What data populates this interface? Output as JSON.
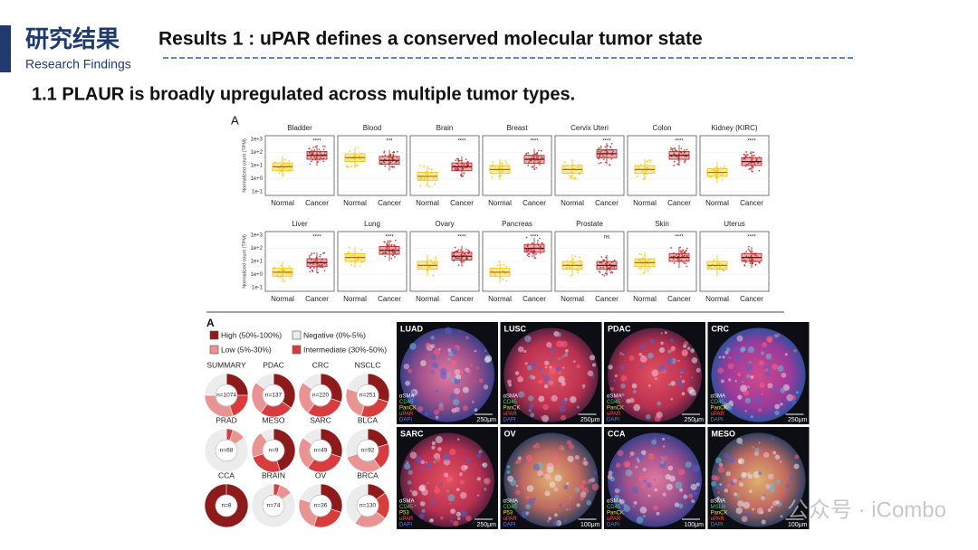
{
  "header": {
    "title_cn": "研究结果",
    "title_en": "Research Findings",
    "heading": "Results 1 : uPAR defines a conserved molecular tumor state"
  },
  "subtitle": "1.1 PLAUR is broadly upregulated across multiple tumor types.",
  "expression_panel": {
    "label": "A",
    "y_axis_label": "Normalized count (TPM)",
    "log_scale": true,
    "ylim": [
      0.1,
      1000
    ],
    "yticks": [
      {
        "value": 1000,
        "label": "1e+3"
      },
      {
        "value": 100,
        "label": "1e+2"
      },
      {
        "value": 10,
        "label": "1e+1"
      },
      {
        "value": 1,
        "label": "1e+0"
      },
      {
        "value": 0.1,
        "label": "1e-1"
      }
    ],
    "groups": [
      "Normal",
      "Cancer"
    ],
    "colors": [
      "#f2c200",
      "#b22222"
    ],
    "tissues": [
      {
        "name": "Bladder",
        "significance": "****",
        "medians": [
          8,
          60
        ]
      },
      {
        "name": "Blood",
        "significance": "***",
        "medians": [
          40,
          25
        ]
      },
      {
        "name": "Brain",
        "significance": "****",
        "medians": [
          1.5,
          8
        ]
      },
      {
        "name": "Breast",
        "significance": "****",
        "medians": [
          5,
          30
        ]
      },
      {
        "name": "Cervix Uteri",
        "significance": "****",
        "medians": [
          5,
          80
        ]
      },
      {
        "name": "Colon",
        "significance": "****",
        "medians": [
          5,
          60
        ]
      },
      {
        "name": "Kidney (KIRC)",
        "significance": "****",
        "medians": [
          3,
          20
        ]
      },
      {
        "name": "Liver",
        "significance": "****",
        "medians": [
          1.5,
          8
        ]
      },
      {
        "name": "Lung",
        "significance": "****",
        "medians": [
          20,
          70
        ]
      },
      {
        "name": "Ovary",
        "significance": "****",
        "medians": [
          5,
          25
        ]
      },
      {
        "name": "Pancreas",
        "significance": "****",
        "medians": [
          1.5,
          100
        ]
      },
      {
        "name": "Prostate",
        "significance": "ns",
        "medians": [
          5,
          5
        ]
      },
      {
        "name": "Skin",
        "significance": "****",
        "medians": [
          8,
          20
        ]
      },
      {
        "name": "Uterus",
        "significance": "****",
        "medians": [
          5,
          20
        ]
      }
    ]
  },
  "proportion_panel": {
    "label": "A",
    "legend": [
      {
        "name": "High (50%-100%)",
        "color": "#8e1b1b"
      },
      {
        "name": "Negative (0%-5%)",
        "color": "#ececec"
      },
      {
        "name": "Low (5%-30%)",
        "color": "#e99393"
      },
      {
        "name": "Intermediate (30%-50%)",
        "color": "#d83c3c"
      }
    ],
    "cohorts": [
      {
        "name": "SUMMARY",
        "n": "n=1074",
        "shares": [
          25,
          25,
          30,
          20
        ]
      },
      {
        "name": "PDAC",
        "n": "n=137",
        "shares": [
          35,
          15,
          25,
          25
        ]
      },
      {
        "name": "CRC",
        "n": "n=220",
        "shares": [
          30,
          15,
          25,
          30
        ]
      },
      {
        "name": "NSCLC",
        "n": "n=251",
        "shares": [
          30,
          20,
          25,
          25
        ]
      },
      {
        "name": "PRAD",
        "n": "n=68",
        "shares": [
          0,
          85,
          10,
          5
        ]
      },
      {
        "name": "MESO",
        "n": "n=9",
        "shares": [
          45,
          10,
          20,
          25
        ]
      },
      {
        "name": "SARC",
        "n": "n=49",
        "shares": [
          30,
          15,
          25,
          30
        ]
      },
      {
        "name": "BLCA",
        "n": "n=92",
        "shares": [
          20,
          30,
          30,
          20
        ]
      },
      {
        "name": "CCA",
        "n": "n=8",
        "shares": [
          100,
          0,
          0,
          0
        ]
      },
      {
        "name": "BRAIN",
        "n": "n=74",
        "shares": [
          0,
          85,
          10,
          5
        ]
      },
      {
        "name": "OV",
        "n": "n=36",
        "shares": [
          30,
          20,
          25,
          25
        ]
      },
      {
        "name": "BRCA",
        "n": "n=130",
        "shares": [
          15,
          40,
          25,
          20
        ]
      }
    ]
  },
  "image_panel": {
    "tiles": [
      {
        "name": "LUAD",
        "stains": [
          "αSMA",
          "CD45",
          "PanCK",
          "uPAR",
          "DAPI"
        ],
        "scale_bar": "250μm"
      },
      {
        "name": "LUSC",
        "stains": [
          "αSMA",
          "CD45",
          "PanCK",
          "uPAR",
          "DAPI"
        ],
        "scale_bar": "250μm"
      },
      {
        "name": "PDAC",
        "stains": [
          "αSMA",
          "CD45",
          "PanCK",
          "uPAR",
          "DAPI"
        ],
        "scale_bar": "250μm"
      },
      {
        "name": "CRC",
        "stains": [
          "αSMA",
          "CD45",
          "PanCK",
          "uPAR",
          "DAPI"
        ],
        "scale_bar": "250μm"
      },
      {
        "name": "SARC",
        "stains": [
          "αSMA",
          "CD45",
          "P53",
          "uPAR",
          "DAPI"
        ],
        "scale_bar": "250μm"
      },
      {
        "name": "OV",
        "stains": [
          "αSMA",
          "CD45",
          "P53",
          "uPAR",
          "DAPI"
        ],
        "scale_bar": "100μm"
      },
      {
        "name": "CCA",
        "stains": [
          "αSMA",
          "CD45",
          "PanCK",
          "uPAR",
          "DAPI"
        ],
        "scale_bar": "100μm"
      },
      {
        "name": "MESO",
        "stains": [
          "αSMA",
          "MSLN",
          "PanCK",
          "uPAR",
          "DAPI"
        ],
        "scale_bar": "100μm"
      }
    ]
  },
  "watermark": "公众号 · iCombo"
}
